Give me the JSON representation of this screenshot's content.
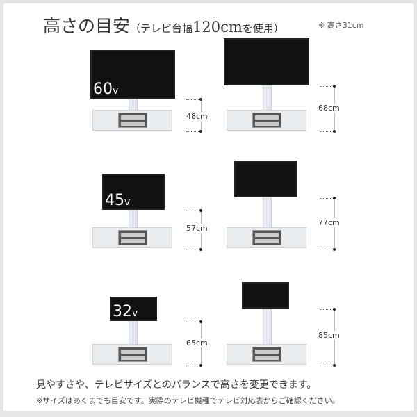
{
  "title": {
    "main": "高さの目安",
    "paren_open": "（テレビ台幅",
    "width": "120cm",
    "paren_close": "を使用）"
  },
  "note": "※ 高さ31cm",
  "tvs": [
    {
      "size": "60",
      "unit": "v",
      "height": "48cm"
    },
    {
      "size": "",
      "unit": "",
      "height": "68cm"
    },
    {
      "size": "45",
      "unit": "v",
      "height": "57cm"
    },
    {
      "size": "",
      "unit": "",
      "height": "77cm"
    },
    {
      "size": "32",
      "unit": "v",
      "height": "65cm"
    },
    {
      "size": "",
      "unit": "",
      "height": "85cm"
    }
  ],
  "caption": "見やすさや、テレビサイズとのバランスで高さを変更できます。",
  "disclaimer": "※サイズはあくまでも目安です。実際のテレビ機種でテレビ対応表からご確認ください。"
}
